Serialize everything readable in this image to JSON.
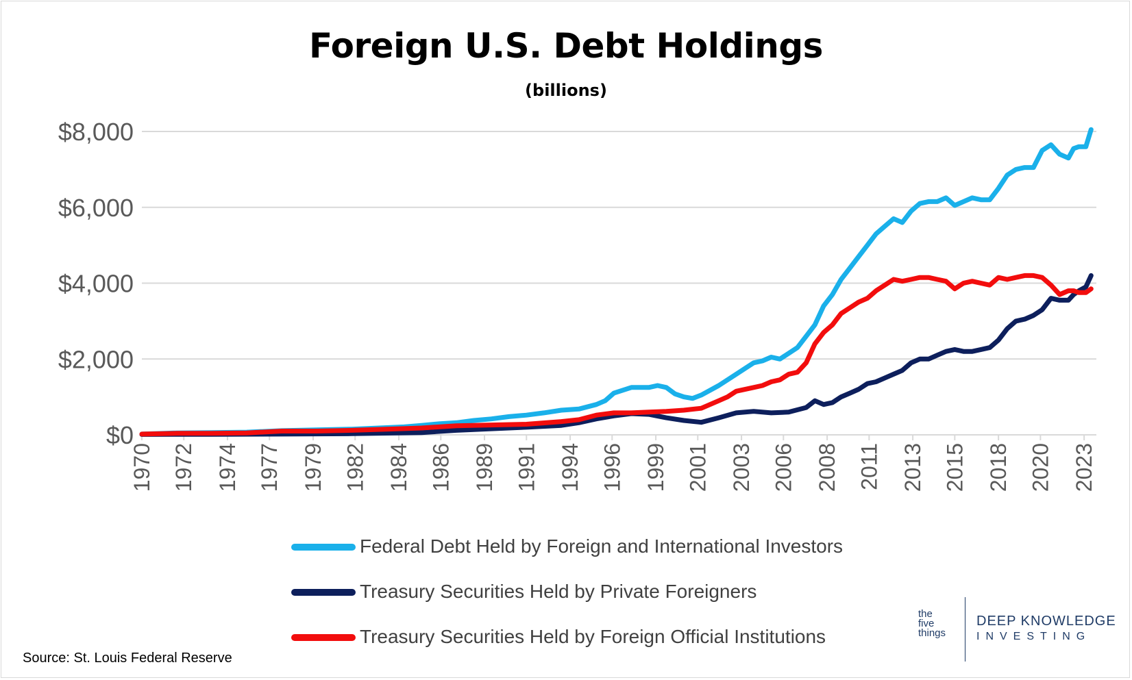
{
  "title": "Foreign U.S. Debt Holdings",
  "subtitle": "(billions)",
  "source": "Source: St. Louis Federal Reserve",
  "logo": {
    "five_things": [
      "the",
      "five",
      "things"
    ],
    "brand_top": "DEEP KNOWLEDGE",
    "brand_bottom": "INVESTING"
  },
  "colors": {
    "federal_debt": "#1ab0ea",
    "private": "#0d1f5c",
    "official": "#f20d0d",
    "grid": "#d9d9d9",
    "axis_text": "#595959"
  },
  "chart_data": {
    "type": "line",
    "ylim": [
      0,
      8000
    ],
    "yticks": [
      0,
      2000,
      4000,
      6000,
      8000
    ],
    "ytick_labels": [
      "$0",
      "$2,000",
      "$4,000",
      "$6,000",
      "$8,000"
    ],
    "xlim": [
      1970,
      2024.6
    ],
    "xtick_labels": [
      "1970",
      "1972",
      "1974",
      "1977",
      "1979",
      "1982",
      "1984",
      "1986",
      "1989",
      "1991",
      "1994",
      "1996",
      "1999",
      "2001",
      "2003",
      "2006",
      "2008",
      "2011",
      "2013",
      "2015",
      "2018",
      "2020",
      "2023"
    ],
    "xtick_positions": [
      1970,
      1972.4,
      1974.9,
      1977.3,
      1979.8,
      1982.2,
      1984.7,
      1987.1,
      1989.6,
      1992.0,
      1994.5,
      1996.9,
      1999.4,
      2001.8,
      2004.3,
      2006.7,
      2009.2,
      2011.6,
      2014.1,
      2016.5,
      2019.0,
      2021.4,
      2023.9
    ],
    "grid": true,
    "legend_position": "bottom",
    "series": [
      {
        "name": "Federal Debt Held by Foreign and International Investors",
        "color": "#1ab0ea",
        "x": [
          1970,
          1972,
          1974,
          1976,
          1978,
          1980,
          1982,
          1984,
          1985,
          1986,
          1987,
          1988,
          1989,
          1990,
          1991,
          1992,
          1993,
          1994,
          1995,
          1996,
          1996.5,
          1997,
          1998,
          1999,
          1999.5,
          2000,
          2000.5,
          2001,
          2001.5,
          2002,
          2003,
          2004,
          2004.5,
          2005,
          2005.5,
          2006,
          2006.5,
          2007,
          2007.5,
          2008,
          2008.5,
          2009,
          2009.5,
          2010,
          2010.5,
          2011,
          2011.5,
          2012,
          2012.5,
          2013,
          2013.5,
          2014,
          2014.5,
          2015,
          2015.5,
          2016,
          2016.5,
          2017,
          2017.5,
          2018,
          2018.5,
          2019,
          2019.5,
          2020,
          2020.5,
          2021,
          2021.5,
          2022,
          2022.5,
          2023,
          2023.3,
          2023.6,
          2024,
          2024.3
        ],
        "y": [
          20,
          50,
          60,
          70,
          110,
          130,
          150,
          190,
          210,
          250,
          290,
          320,
          380,
          420,
          480,
          520,
          580,
          650,
          680,
          800,
          900,
          1100,
          1250,
          1250,
          1300,
          1250,
          1080,
          1000,
          960,
          1050,
          1300,
          1600,
          1750,
          1900,
          1950,
          2050,
          2000,
          2150,
          2300,
          2600,
          2900,
          3400,
          3700,
          4100,
          4400,
          4700,
          5000,
          5300,
          5500,
          5700,
          5600,
          5900,
          6100,
          6150,
          6150,
          6250,
          6050,
          6150,
          6250,
          6200,
          6200,
          6500,
          6850,
          7000,
          7050,
          7050,
          7500,
          7650,
          7400,
          7300,
          7550,
          7600,
          7600,
          8050
        ]
      },
      {
        "name": "Treasury Securities Held by Private Foreigners",
        "color": "#0d1f5c",
        "x": [
          1970,
          1974,
          1978,
          1982,
          1986,
          1988,
          1990,
          1992,
          1994,
          1995,
          1996,
          1997,
          1998,
          1999,
          2000,
          2001,
          2002,
          2003,
          2004,
          2005,
          2006,
          2007,
          2008,
          2008.5,
          2009,
          2009.5,
          2010,
          2010.5,
          2011,
          2011.5,
          2012,
          2012.5,
          2013,
          2013.5,
          2014,
          2014.5,
          2015,
          2015.5,
          2016,
          2016.5,
          2017,
          2017.5,
          2018,
          2018.5,
          2019,
          2019.5,
          2020,
          2020.5,
          2021,
          2021.5,
          2022,
          2022.5,
          2023,
          2023.3,
          2023.6,
          2024,
          2024.3
        ],
        "y": [
          10,
          15,
          20,
          30,
          60,
          120,
          160,
          200,
          250,
          320,
          420,
          500,
          560,
          540,
          450,
          380,
          330,
          450,
          580,
          620,
          580,
          600,
          720,
          900,
          800,
          850,
          1000,
          1100,
          1200,
          1350,
          1400,
          1500,
          1600,
          1700,
          1900,
          2000,
          2000,
          2100,
          2200,
          2250,
          2200,
          2200,
          2250,
          2300,
          2500,
          2800,
          3000,
          3050,
          3150,
          3300,
          3600,
          3550,
          3550,
          3700,
          3800,
          3900,
          4200
        ]
      },
      {
        "name": "Treasury Securities Held by Foreign Official Institutions",
        "color": "#f20d0d",
        "x": [
          1970,
          1972,
          1974,
          1976,
          1978,
          1980,
          1982,
          1984,
          1986,
          1988,
          1990,
          1992,
          1994,
          1995,
          1996,
          1997,
          1998,
          1999,
          2000,
          2001,
          2002,
          2003,
          2003.5,
          2004,
          2005,
          2005.5,
          2006,
          2006.5,
          2007,
          2007.5,
          2008,
          2008.5,
          2009,
          2009.5,
          2010,
          2010.5,
          2011,
          2011.5,
          2012,
          2012.5,
          2013,
          2013.5,
          2014,
          2014.5,
          2015,
          2015.5,
          2016,
          2016.5,
          2017,
          2017.5,
          2018,
          2018.5,
          2019,
          2019.5,
          2020,
          2020.5,
          2021,
          2021.5,
          2022,
          2022.5,
          2023,
          2023.3,
          2023.6,
          2024,
          2024.3
        ],
        "y": [
          20,
          40,
          40,
          50,
          100,
          100,
          120,
          150,
          180,
          240,
          260,
          280,
          350,
          400,
          520,
          580,
          580,
          600,
          620,
          650,
          700,
          900,
          1000,
          1150,
          1250,
          1300,
          1400,
          1450,
          1600,
          1650,
          1900,
          2400,
          2700,
          2900,
          3200,
          3350,
          3500,
          3600,
          3800,
          3950,
          4100,
          4050,
          4100,
          4150,
          4150,
          4100,
          4050,
          3850,
          4000,
          4050,
          4000,
          3950,
          4150,
          4100,
          4150,
          4200,
          4200,
          4150,
          3950,
          3700,
          3800,
          3800,
          3750,
          3750,
          3850
        ]
      }
    ]
  }
}
